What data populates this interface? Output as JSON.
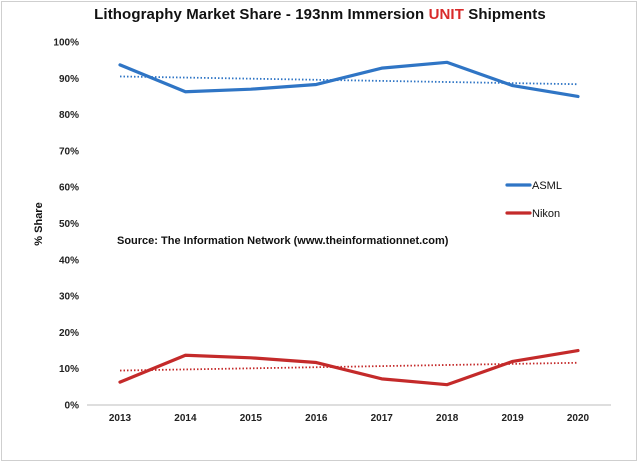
{
  "title": {
    "before": "Lithography Market Share - 193nm Immersion ",
    "highlight": "UNIT",
    "after": " Shipments",
    "highlight_color": "#d92b2b"
  },
  "annotation": "Source: The Information Network (www.theinformationnet.com)",
  "chart_data": {
    "type": "line",
    "title": "Lithography Market Share - 193nm Immersion UNIT Shipments",
    "xlabel": "",
    "ylabel": "% Share",
    "x": [
      "2013",
      "2014",
      "2015",
      "2016",
      "2017",
      "2018",
      "2019",
      "2020"
    ],
    "ylim": [
      0,
      100
    ],
    "yticks": [
      0,
      10,
      20,
      30,
      40,
      50,
      60,
      70,
      80,
      90,
      100
    ],
    "ytick_labels": [
      "0%",
      "10%",
      "20%",
      "30%",
      "40%",
      "50%",
      "60%",
      "70%",
      "80%",
      "90%",
      "100%"
    ],
    "grid": false,
    "legend_position": "right",
    "series": [
      {
        "name": "ASML",
        "color": "#2f75c5",
        "values": [
          93.7,
          86.3,
          87.0,
          88.3,
          92.8,
          94.4,
          88.0,
          85.0
        ],
        "trendline": true
      },
      {
        "name": "Nikon",
        "color": "#c42a2a",
        "values": [
          6.3,
          13.7,
          13.0,
          11.7,
          7.2,
          5.6,
          12.0,
          15.0
        ],
        "trendline": true
      }
    ]
  }
}
